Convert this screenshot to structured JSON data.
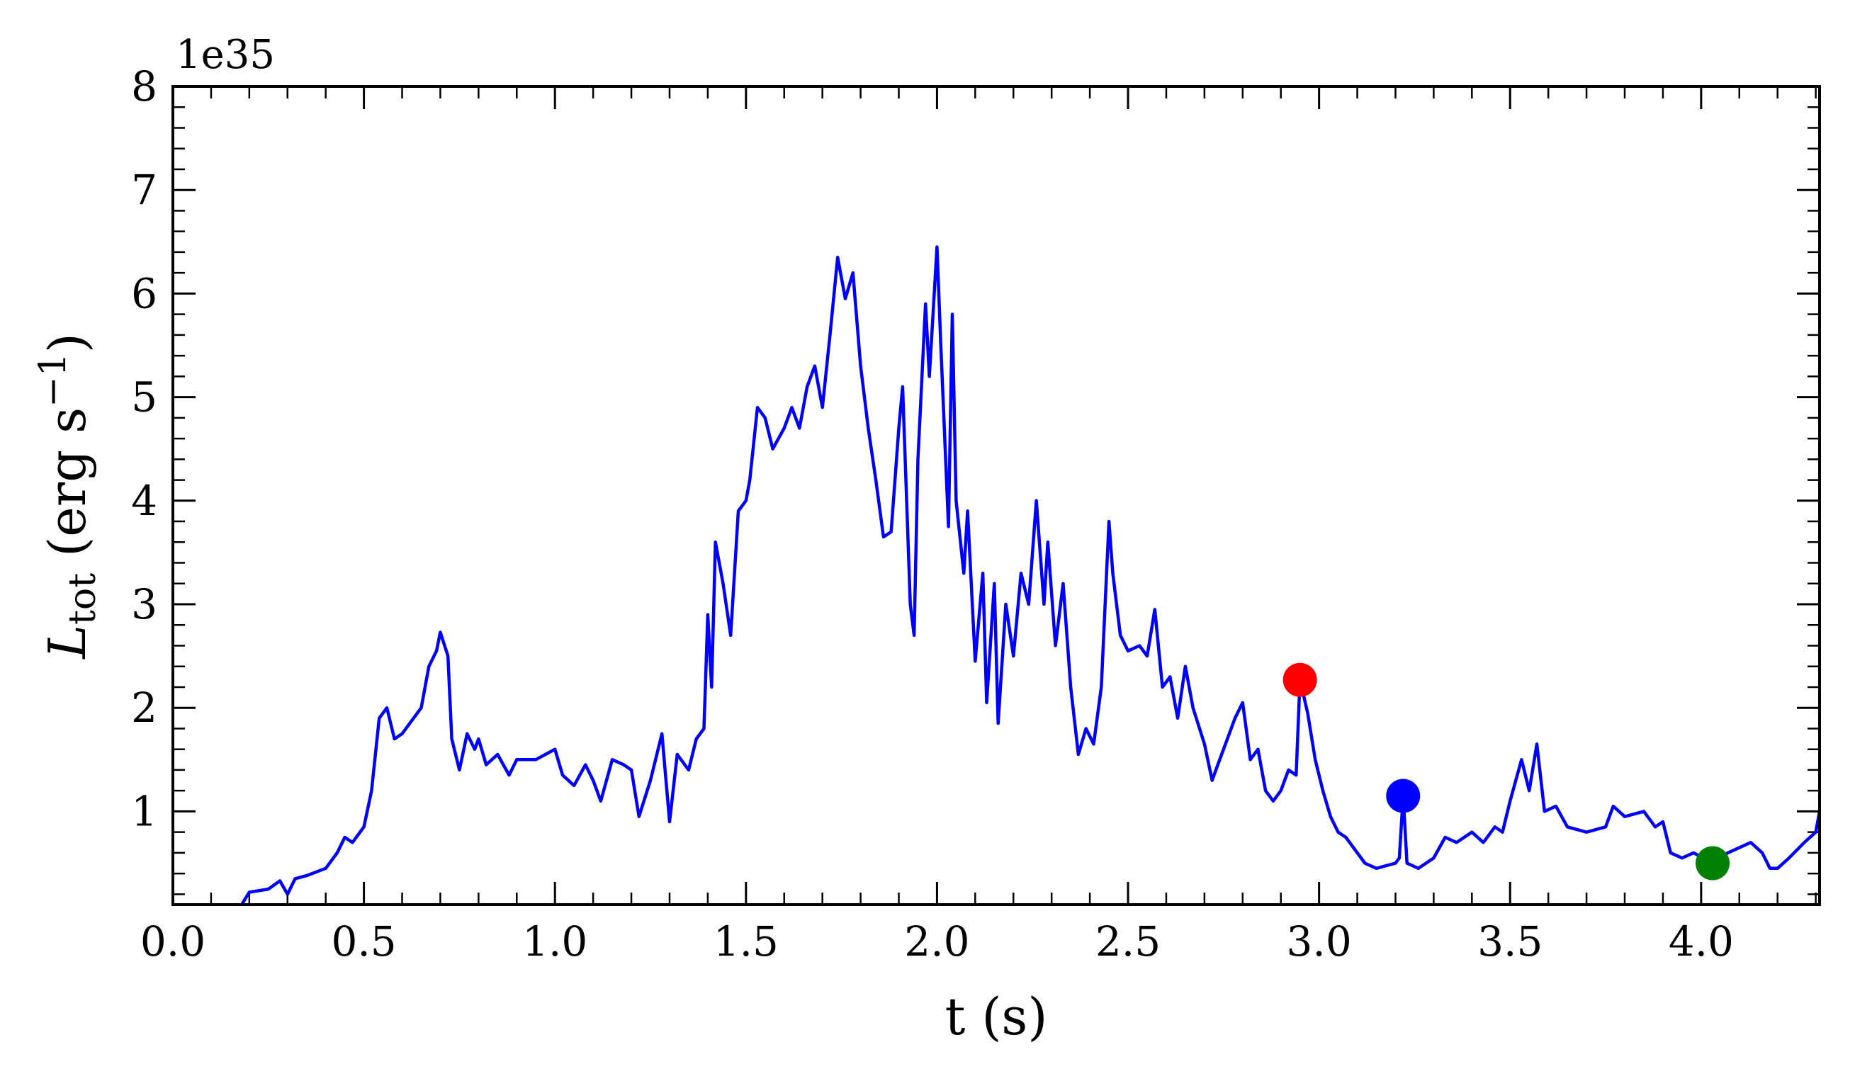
{
  "chart_data": {
    "type": "line",
    "offset_text": "1e35",
    "xlabel": "t (s)",
    "ylabel": {
      "main": "L",
      "sub": "tot",
      "rest": " (erg s",
      "sup": "−1",
      "end": ")"
    },
    "xlim": [
      0,
      4.31
    ],
    "ylim": [
      0.1,
      8
    ],
    "xticks": [
      {
        "value": 0,
        "label": "0.0"
      },
      0.5,
      {
        "value": 1,
        "label": "1.0"
      },
      1.5,
      {
        "value": 2,
        "label": "2.0"
      },
      2.5,
      {
        "value": 3,
        "label": "3.0"
      },
      3.5,
      {
        "value": 4,
        "label": "4.0"
      }
    ],
    "yticks": [
      1,
      2,
      3,
      4,
      5,
      6,
      7,
      8
    ],
    "xminorticks": [
      0.1,
      0.2,
      0.3,
      0.4,
      0.6,
      0.7,
      0.8,
      0.9,
      1.1,
      1.2,
      1.3,
      1.4,
      1.6,
      1.7,
      1.8,
      1.9,
      2.1,
      2.2,
      2.3,
      2.4,
      2.6,
      2.7,
      2.8,
      2.9,
      3.1,
      3.2,
      3.3,
      3.4,
      3.6,
      3.7,
      3.8,
      3.9,
      4.1,
      4.2,
      4.3
    ],
    "yminorticks": [
      0.2,
      0.4,
      0.6,
      0.8,
      1.2,
      1.4,
      1.6,
      1.8,
      2.2,
      2.4,
      2.6,
      2.8,
      3.2,
      3.4,
      3.6,
      3.8,
      4.2,
      4.4,
      4.6,
      4.8,
      5.2,
      5.4,
      5.6,
      5.8,
      6.2,
      6.4,
      6.6,
      6.8,
      7.2,
      7.4,
      7.6,
      7.8
    ],
    "x": [
      0.18,
      0.2,
      0.25,
      0.28,
      0.3,
      0.32,
      0.35,
      0.4,
      0.43,
      0.45,
      0.47,
      0.5,
      0.52,
      0.54,
      0.56,
      0.58,
      0.6,
      0.63,
      0.65,
      0.67,
      0.69,
      0.7,
      0.72,
      0.73,
      0.75,
      0.77,
      0.79,
      0.8,
      0.82,
      0.85,
      0.88,
      0.9,
      0.95,
      1.0,
      1.02,
      1.05,
      1.08,
      1.1,
      1.12,
      1.15,
      1.18,
      1.2,
      1.22,
      1.25,
      1.28,
      1.3,
      1.32,
      1.35,
      1.37,
      1.39,
      1.4,
      1.41,
      1.42,
      1.44,
      1.46,
      1.48,
      1.5,
      1.51,
      1.53,
      1.55,
      1.57,
      1.6,
      1.62,
      1.64,
      1.66,
      1.68,
      1.7,
      1.72,
      1.74,
      1.76,
      1.78,
      1.8,
      1.82,
      1.84,
      1.86,
      1.88,
      1.9,
      1.91,
      1.93,
      1.94,
      1.95,
      1.97,
      1.98,
      2.0,
      2.01,
      2.03,
      2.04,
      2.05,
      2.07,
      2.08,
      2.1,
      2.12,
      2.13,
      2.15,
      2.16,
      2.18,
      2.2,
      2.22,
      2.24,
      2.26,
      2.28,
      2.29,
      2.31,
      2.33,
      2.35,
      2.37,
      2.39,
      2.41,
      2.43,
      2.45,
      2.46,
      2.48,
      2.5,
      2.53,
      2.55,
      2.57,
      2.59,
      2.61,
      2.63,
      2.65,
      2.67,
      2.7,
      2.72,
      2.74,
      2.76,
      2.78,
      2.8,
      2.82,
      2.84,
      2.86,
      2.88,
      2.9,
      2.92,
      2.94,
      2.95,
      2.97,
      2.99,
      3.01,
      3.03,
      3.05,
      3.07,
      3.09,
      3.12,
      3.15,
      3.2,
      3.21,
      3.22,
      3.23,
      3.26,
      3.3,
      3.33,
      3.36,
      3.4,
      3.43,
      3.46,
      3.48,
      3.5,
      3.53,
      3.55,
      3.57,
      3.59,
      3.62,
      3.65,
      3.7,
      3.75,
      3.77,
      3.8,
      3.85,
      3.88,
      3.9,
      3.92,
      3.95,
      3.98,
      4.03,
      4.07,
      4.1,
      4.13,
      4.16,
      4.18,
      4.2,
      4.23,
      4.27,
      4.3,
      4.31
    ],
    "series": [
      {
        "color": "#0000ff",
        "values": [
          0.1,
          0.22,
          0.25,
          0.33,
          0.2,
          0.35,
          0.38,
          0.45,
          0.6,
          0.75,
          0.7,
          0.85,
          1.2,
          1.9,
          2.0,
          1.7,
          1.75,
          1.9,
          2.0,
          2.4,
          2.55,
          2.73,
          2.5,
          1.7,
          1.4,
          1.75,
          1.6,
          1.7,
          1.45,
          1.55,
          1.35,
          1.5,
          1.5,
          1.6,
          1.35,
          1.25,
          1.45,
          1.3,
          1.1,
          1.5,
          1.45,
          1.4,
          0.95,
          1.3,
          1.75,
          0.9,
          1.55,
          1.4,
          1.7,
          1.8,
          2.9,
          2.2,
          3.6,
          3.2,
          2.7,
          3.9,
          4.0,
          4.2,
          4.9,
          4.8,
          4.5,
          4.7,
          4.9,
          4.7,
          5.1,
          5.3,
          4.9,
          5.6,
          6.35,
          5.95,
          6.2,
          5.3,
          4.7,
          4.2,
          3.65,
          3.7,
          4.7,
          5.1,
          3.0,
          2.7,
          4.4,
          5.9,
          5.2,
          6.45,
          5.5,
          3.75,
          5.8,
          4.0,
          3.3,
          3.9,
          2.45,
          3.3,
          2.05,
          3.2,
          1.85,
          3.0,
          2.5,
          3.3,
          3.0,
          4.0,
          3.0,
          3.6,
          2.6,
          3.2,
          2.2,
          1.55,
          1.8,
          1.65,
          2.2,
          3.8,
          3.3,
          2.7,
          2.55,
          2.6,
          2.5,
          2.95,
          2.2,
          2.3,
          1.9,
          2.4,
          2.0,
          1.65,
          1.3,
          1.5,
          1.7,
          1.9,
          2.05,
          1.5,
          1.6,
          1.2,
          1.1,
          1.2,
          1.4,
          1.35,
          2.27,
          1.95,
          1.5,
          1.2,
          0.95,
          0.8,
          0.75,
          0.65,
          0.5,
          0.45,
          0.5,
          0.55,
          1.15,
          0.5,
          0.45,
          0.55,
          0.75,
          0.7,
          0.8,
          0.7,
          0.85,
          0.8,
          1.1,
          1.5,
          1.2,
          1.65,
          1.0,
          1.05,
          0.85,
          0.8,
          0.85,
          1.05,
          0.95,
          1.0,
          0.85,
          0.9,
          0.6,
          0.55,
          0.6,
          0.5,
          0.6,
          0.65,
          0.7,
          0.6,
          0.45,
          0.45,
          0.55,
          0.7,
          0.8,
          1.0
        ]
      }
    ],
    "points": [
      {
        "x": 2.95,
        "y": 2.27,
        "color": "#ff0000"
      },
      {
        "x": 3.22,
        "y": 1.15,
        "color": "#0000ff"
      },
      {
        "x": 4.03,
        "y": 0.5,
        "color": "#008000"
      }
    ]
  }
}
